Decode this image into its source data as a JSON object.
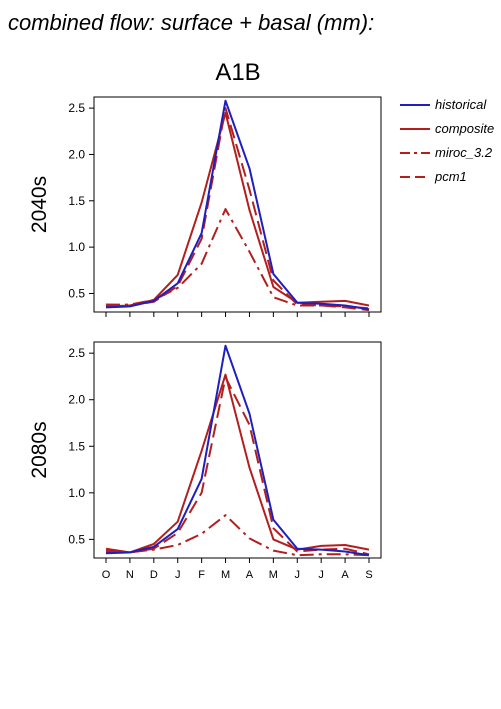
{
  "figure": {
    "title": "combined flow: surface + basal (mm):",
    "scenario": "A1B"
  },
  "legend": [
    {
      "label": "historical",
      "color": "#1f1fbf",
      "dash": "solid"
    },
    {
      "label": "composite",
      "color": "#b21f1f",
      "dash": "solid"
    },
    {
      "label": "miroc_3.2",
      "color": "#b21f1f",
      "dash": "dashdot"
    },
    {
      "label": "pcm1",
      "color": "#b21f1f",
      "dash": "dashed"
    }
  ],
  "chart_data": [
    {
      "type": "line",
      "panel_label": "2040s",
      "categories": [
        "O",
        "N",
        "D",
        "J",
        "F",
        "M",
        "A",
        "M",
        "J",
        "J",
        "A",
        "S"
      ],
      "ylim": [
        0.3,
        2.62
      ],
      "yticks": [
        "0.5",
        "1.0",
        "1.5",
        "2.0",
        "2.5"
      ],
      "series": [
        {
          "name": "historical",
          "values": [
            0.35,
            0.36,
            0.42,
            0.61,
            1.15,
            2.58,
            1.85,
            0.71,
            0.4,
            0.39,
            0.37,
            0.33
          ]
        },
        {
          "name": "composite",
          "values": [
            0.36,
            0.37,
            0.43,
            0.7,
            1.48,
            2.45,
            1.4,
            0.57,
            0.4,
            0.41,
            0.42,
            0.37
          ]
        },
        {
          "name": "miroc_3.2",
          "values": [
            0.38,
            0.38,
            0.43,
            0.56,
            0.82,
            1.41,
            0.95,
            0.46,
            0.37,
            0.37,
            0.36,
            0.34
          ]
        },
        {
          "name": "pcm1",
          "values": [
            0.38,
            0.37,
            0.41,
            0.58,
            1.09,
            2.5,
            1.62,
            0.64,
            0.38,
            0.37,
            0.35,
            0.32
          ]
        }
      ]
    },
    {
      "type": "line",
      "panel_label": "2080s",
      "categories": [
        "O",
        "N",
        "D",
        "J",
        "F",
        "M",
        "A",
        "M",
        "J",
        "J",
        "A",
        "S"
      ],
      "ylim": [
        0.3,
        2.62
      ],
      "yticks": [
        "0.5",
        "1.0",
        "1.5",
        "2.0",
        "2.5"
      ],
      "series": [
        {
          "name": "historical",
          "values": [
            0.35,
            0.36,
            0.42,
            0.61,
            1.15,
            2.58,
            1.85,
            0.71,
            0.4,
            0.39,
            0.37,
            0.33
          ]
        },
        {
          "name": "composite",
          "values": [
            0.4,
            0.36,
            0.45,
            0.69,
            1.45,
            2.27,
            1.27,
            0.5,
            0.39,
            0.43,
            0.44,
            0.39
          ]
        },
        {
          "name": "miroc_3.2",
          "values": [
            0.38,
            0.36,
            0.39,
            0.44,
            0.56,
            0.76,
            0.51,
            0.38,
            0.33,
            0.34,
            0.34,
            0.33
          ]
        },
        {
          "name": "pcm1",
          "values": [
            0.37,
            0.36,
            0.4,
            0.57,
            1.0,
            2.24,
            1.73,
            0.62,
            0.37,
            0.39,
            0.4,
            0.34
          ]
        }
      ]
    }
  ]
}
